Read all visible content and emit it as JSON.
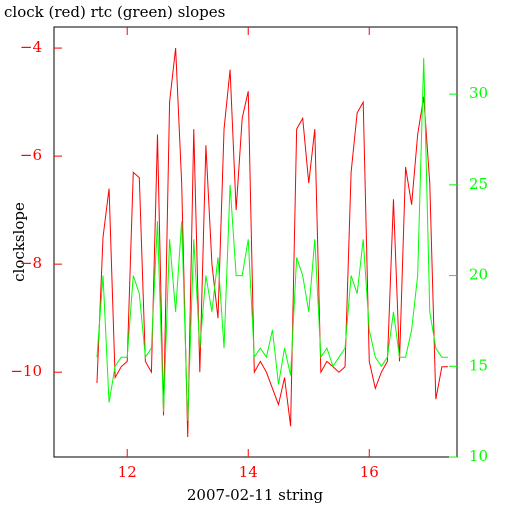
{
  "chart_data": {
    "type": "line",
    "title": "clock (red) rtc (green) slopes",
    "xlabel": "2007-02-11 string",
    "ylabel": "clockslope",
    "x": [
      11.5,
      11.6,
      11.7,
      11.8,
      11.9,
      12.0,
      12.1,
      12.2,
      12.3,
      12.4,
      12.5,
      12.6,
      12.7,
      12.8,
      12.9,
      13.0,
      13.1,
      13.2,
      13.3,
      13.4,
      13.5,
      13.6,
      13.7,
      13.8,
      13.9,
      14.0,
      14.1,
      14.2,
      14.3,
      14.4,
      14.5,
      14.6,
      14.7,
      14.8,
      14.9,
      15.0,
      15.1,
      15.2,
      15.3,
      15.4,
      15.5,
      15.6,
      15.7,
      15.8,
      15.9,
      16.0,
      16.1,
      16.2,
      16.3,
      16.4,
      16.5,
      16.6,
      16.7,
      16.8,
      16.9,
      17.0,
      17.1,
      17.2,
      17.3
    ],
    "series": [
      {
        "name": "clock",
        "color": "#ff0000",
        "values": [
          -10.2,
          -7.5,
          -6.6,
          -10.1,
          -9.9,
          -9.8,
          -6.3,
          -6.4,
          -9.8,
          -10.0,
          -5.6,
          -10.8,
          -5.0,
          -4.0,
          -6.5,
          -11.2,
          -5.5,
          -10.0,
          -5.8,
          -8.0,
          -9.0,
          -5.5,
          -4.4,
          -7.0,
          -5.3,
          -4.8,
          -10.0,
          -9.8,
          -10.0,
          -10.3,
          -10.6,
          -10.1,
          -11.0,
          -5.5,
          -5.3,
          -6.5,
          -5.5,
          -10.0,
          -9.8,
          -9.9,
          -10.0,
          -9.9,
          -6.3,
          -5.2,
          -5.0,
          -9.8,
          -10.3,
          -10.0,
          -9.8,
          -6.8,
          -9.8,
          -6.2,
          -6.9,
          -5.6,
          -4.9,
          -6.5,
          -10.5,
          -9.9,
          -9.9
        ]
      },
      {
        "name": "rtc",
        "color": "#00ff00",
        "axis": "y2",
        "values": [
          15.5,
          20,
          13,
          15,
          15.5,
          15.5,
          20,
          19,
          15.5,
          16,
          23,
          12.5,
          22,
          18,
          23,
          12,
          22,
          16,
          20,
          18,
          21,
          16,
          25,
          20,
          20,
          22,
          15.5,
          16,
          15.5,
          17,
          14,
          16,
          14.5,
          21,
          20,
          18,
          22,
          15.5,
          16,
          15,
          15.5,
          16,
          20,
          19,
          22,
          17,
          15.5,
          15,
          15.5,
          18,
          15.5,
          15.5,
          17,
          20,
          32,
          18,
          16,
          15.5,
          15.5
        ]
      }
    ],
    "xlim": [
      10.79,
      17.45
    ],
    "xticks": [
      12,
      14,
      16
    ],
    "ylim": [
      -11.57,
      -3.61
    ],
    "yticks": [
      {
        "value": -10,
        "label": "−10"
      },
      {
        "value": -8,
        "label": "−8"
      },
      {
        "value": -6,
        "label": "−6"
      },
      {
        "value": -4,
        "label": "−4"
      }
    ],
    "y2lim": [
      10,
      33.7
    ],
    "y2ticks": [
      10,
      15,
      20,
      25,
      30
    ]
  }
}
